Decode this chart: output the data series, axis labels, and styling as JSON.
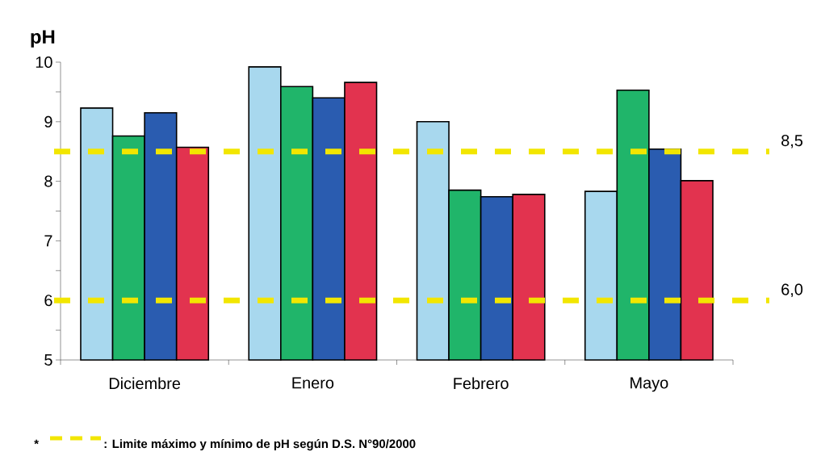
{
  "chart_data": {
    "type": "bar",
    "ylabel": "pH",
    "categories": [
      "Diciembre",
      "Enero",
      "Febrero",
      "Mayo"
    ],
    "series": [
      {
        "color": "#a8d8ee",
        "values": [
          9.23,
          9.92,
          9.0,
          7.83
        ]
      },
      {
        "color": "#20b56a",
        "values": [
          8.76,
          9.59,
          7.85,
          9.53
        ]
      },
      {
        "color": "#2a5cb0",
        "values": [
          9.15,
          9.4,
          7.74,
          8.54
        ]
      },
      {
        "color": "#e2334f",
        "values": [
          8.57,
          9.66,
          7.78,
          8.01
        ]
      }
    ],
    "ylim": [
      5,
      10
    ],
    "yticks": [
      5,
      6,
      7,
      8,
      9,
      10
    ],
    "ref_lines": [
      {
        "axis": "y",
        "value": 8.5,
        "label": "8,5",
        "color": "#f2e600",
        "line_style": "dashed"
      },
      {
        "axis": "y",
        "value": 6.0,
        "label": "6,0",
        "color": "#f2e600",
        "line_style": "dashed"
      }
    ],
    "annotations": [
      "*",
      ": Limite máximo y mínimo de pH según D.S. N°90/2000"
    ]
  }
}
